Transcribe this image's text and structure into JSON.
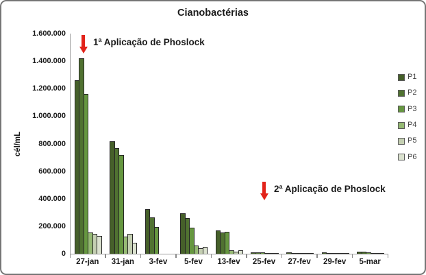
{
  "frame": {
    "background": "#ffffff",
    "border_color": "#767676"
  },
  "chart_data": {
    "type": "bar",
    "title": "Cianobactérias",
    "ylabel": "cél/mL",
    "xlabel": "",
    "ylim": [
      0,
      1600000
    ],
    "ytick_step": 200000,
    "ytick_labels": [
      "0",
      "200.000",
      "400.000",
      "600.000",
      "800.000",
      "1.000.000",
      "1.200.000",
      "1.400.000",
      "1.600.000"
    ],
    "grid": false,
    "legend_position": "right",
    "categories": [
      "27-jan",
      "31-jan",
      "3-fev",
      "5-fev",
      "13-fev",
      "25-fev",
      "27-fev",
      "29-fev",
      "5-mar"
    ],
    "series": [
      {
        "name": "P1",
        "color": "#46602a",
        "values": [
          1260000,
          820000,
          325000,
          295000,
          170000,
          10000,
          8000,
          8000,
          15000
        ]
      },
      {
        "name": "P2",
        "color": "#507231",
        "values": [
          1420000,
          770000,
          265000,
          260000,
          155000,
          8000,
          6000,
          6000,
          13000
        ]
      },
      {
        "name": "P3",
        "color": "#669740",
        "values": [
          1160000,
          720000,
          195000,
          190000,
          162000,
          8000,
          6000,
          6000,
          10000
        ]
      },
      {
        "name": "P4",
        "color": "#96ba74",
        "values": [
          155000,
          125000,
          0,
          60000,
          25000,
          4000,
          3000,
          3000,
          4000
        ]
      },
      {
        "name": "P5",
        "color": "#c4cfb2",
        "values": [
          145000,
          145000,
          0,
          40000,
          15000,
          3000,
          2000,
          2000,
          3000
        ]
      },
      {
        "name": "P6",
        "color": "#dbe2cf",
        "values": [
          130000,
          80000,
          0,
          50000,
          25000,
          3000,
          2000,
          2000,
          3000
        ]
      }
    ],
    "annotations": [
      {
        "text": "1ª Aplicação de Phoslock",
        "arrow_color": "#e2231a"
      },
      {
        "text": "2ª Aplicação de Phoslock",
        "arrow_color": "#e2231a"
      }
    ]
  }
}
